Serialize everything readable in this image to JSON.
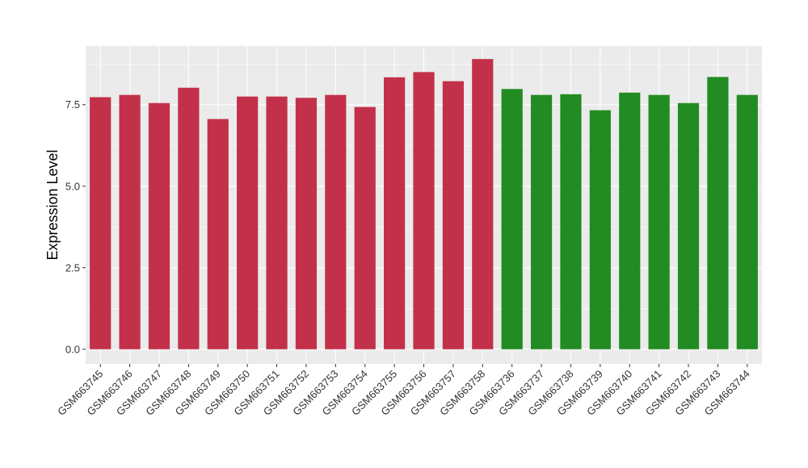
{
  "chart_data": {
    "type": "bar",
    "title": "",
    "xlabel": "",
    "ylabel": "Expression Level",
    "ylim": [
      -0.45,
      9.3
    ],
    "yticks": [
      0.0,
      2.5,
      5.0,
      7.5
    ],
    "ytick_labels": [
      "0.0",
      "2.5",
      "5.0",
      "7.5"
    ],
    "grid": true,
    "background": "#ebebeb",
    "categories": [
      "GSM663745",
      "GSM663746",
      "GSM663747",
      "GSM663748",
      "GSM663749",
      "GSM663750",
      "GSM663751",
      "GSM663752",
      "GSM663753",
      "GSM663754",
      "GSM663755",
      "GSM663756",
      "GSM663757",
      "GSM663758",
      "GSM663736",
      "GSM663737",
      "GSM663738",
      "GSM663739",
      "GSM663740",
      "GSM663741",
      "GSM663742",
      "GSM663743",
      "GSM663744"
    ],
    "values": [
      7.73,
      7.8,
      7.55,
      8.02,
      7.06,
      7.75,
      7.75,
      7.71,
      7.8,
      7.43,
      8.34,
      8.5,
      8.22,
      8.9,
      7.98,
      7.8,
      7.82,
      7.33,
      7.87,
      7.8,
      7.55,
      8.35,
      7.8
    ],
    "colors": [
      "#c3304a",
      "#c3304a",
      "#c3304a",
      "#c3304a",
      "#c3304a",
      "#c3304a",
      "#c3304a",
      "#c3304a",
      "#c3304a",
      "#c3304a",
      "#c3304a",
      "#c3304a",
      "#c3304a",
      "#c3304a",
      "#228b22",
      "#228b22",
      "#228b22",
      "#228b22",
      "#228b22",
      "#228b22",
      "#228b22",
      "#228b22",
      "#228b22"
    ]
  }
}
